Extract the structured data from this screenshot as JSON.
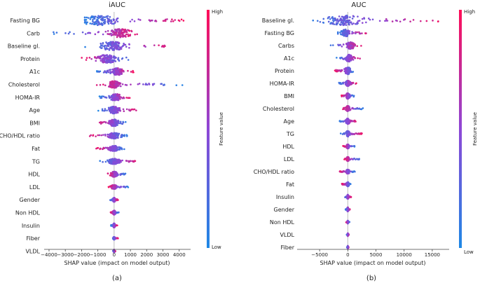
{
  "colors": {
    "low": "#1e88e5",
    "high": "#ff0d57"
  },
  "colorbar": {
    "high": "High",
    "low": "Low",
    "label": "Feature value"
  },
  "chart_data": [
    {
      "type": "scatter",
      "subtype": "shap-beeswarm",
      "title": "iAUC",
      "panel_label": "(a)",
      "xlabel": "SHAP value (impact on model output)",
      "xlim": [
        -4300,
        4700
      ],
      "xticks": [
        -4000,
        -3000,
        -2000,
        -1000,
        0,
        1000,
        2000,
        3000,
        4000
      ],
      "xtick_labels": [
        "−4000",
        "−3000",
        "−2000",
        "−1000",
        "0",
        "1000",
        "2000",
        "3000",
        "4000"
      ],
      "features": [
        {
          "name": "Fasting BG",
          "min": -1800,
          "max": 4300,
          "center": -900,
          "spread": 1400,
          "slope": 1,
          "width": 7
        },
        {
          "name": "Carb",
          "min": -3800,
          "max": 1500,
          "center": 400,
          "spread": 900,
          "slope": 1,
          "width": 6
        },
        {
          "name": "Baseline gl.",
          "min": -1900,
          "max": 3600,
          "center": -100,
          "spread": 1100,
          "slope": 1,
          "width": 6
        },
        {
          "name": "Protein",
          "min": -2000,
          "max": 1000,
          "center": -400,
          "spread": 800,
          "slope": -1,
          "width": 6
        },
        {
          "name": "A1c",
          "min": -1100,
          "max": 1200,
          "center": 200,
          "spread": 500,
          "slope": 1,
          "width": 5
        },
        {
          "name": "Cholesterol",
          "min": -1300,
          "max": 4200,
          "center": 0,
          "spread": 450,
          "slope": -1,
          "width": 5
        },
        {
          "name": "HOMA-IR",
          "min": -900,
          "max": 1000,
          "center": 100,
          "spread": 450,
          "slope": 1,
          "width": 5
        },
        {
          "name": "Age",
          "min": -1000,
          "max": 1500,
          "center": 0,
          "spread": 500,
          "slope": 1,
          "width": 5
        },
        {
          "name": "BMI",
          "min": -1100,
          "max": 800,
          "center": 0,
          "spread": 400,
          "slope": -1,
          "width": 5
        },
        {
          "name": "CHO/HDL ratio",
          "min": -1500,
          "max": 800,
          "center": 0,
          "spread": 500,
          "slope": -1,
          "width": 4
        },
        {
          "name": "Fat",
          "min": -1100,
          "max": 700,
          "center": 0,
          "spread": 400,
          "slope": -1,
          "width": 4
        },
        {
          "name": "TG",
          "min": -900,
          "max": 1500,
          "center": 0,
          "spread": 450,
          "slope": 1,
          "width": 4
        },
        {
          "name": "HDL",
          "min": -400,
          "max": 700,
          "center": 0,
          "spread": 250,
          "slope": -1,
          "width": 4
        },
        {
          "name": "LDL",
          "min": -400,
          "max": 900,
          "center": 0,
          "spread": 250,
          "slope": -1,
          "width": 3
        },
        {
          "name": "Gender",
          "min": -250,
          "max": 250,
          "center": 0,
          "spread": 100,
          "slope": 1,
          "width": 3
        },
        {
          "name": "Non HDL",
          "min": -250,
          "max": 300,
          "center": 0,
          "spread": 100,
          "slope": -1,
          "width": 3
        },
        {
          "name": "Insulin",
          "min": -200,
          "max": 200,
          "center": 0,
          "spread": 80,
          "slope": 1,
          "width": 3
        },
        {
          "name": "Fiber",
          "min": -120,
          "max": 250,
          "center": 0,
          "spread": 60,
          "slope": 1,
          "width": 2
        },
        {
          "name": "VLDL",
          "min": -80,
          "max": 80,
          "center": 0,
          "spread": 30,
          "slope": 1,
          "width": 2
        }
      ]
    },
    {
      "type": "scatter",
      "subtype": "shap-beeswarm",
      "title": "AUC",
      "panel_label": "(b)",
      "xlabel": "SHAP value (impact on model output)",
      "xlim": [
        -9000,
        18000
      ],
      "xticks": [
        -5000,
        0,
        5000,
        10000,
        15000
      ],
      "xtick_labels": [
        "−5000",
        "0",
        "5000",
        "10000",
        "15000"
      ],
      "features": [
        {
          "name": "Baseline gl.",
          "min": -7000,
          "max": 16500,
          "center": -500,
          "spread": 4500,
          "slope": 1,
          "width": 7
        },
        {
          "name": "Fasting BG",
          "min": -1800,
          "max": 3500,
          "center": -400,
          "spread": 900,
          "slope": 1,
          "width": 5
        },
        {
          "name": "Carbs",
          "min": -3200,
          "max": 2500,
          "center": 500,
          "spread": 900,
          "slope": 1,
          "width": 5
        },
        {
          "name": "A1c",
          "min": -2000,
          "max": 2500,
          "center": 200,
          "spread": 800,
          "slope": 1,
          "width": 5
        },
        {
          "name": "Protein",
          "min": -2300,
          "max": 1200,
          "center": 0,
          "spread": 700,
          "slope": -1,
          "width": 5
        },
        {
          "name": "HOMA-IR",
          "min": -1600,
          "max": 1600,
          "center": 0,
          "spread": 500,
          "slope": 1,
          "width": 4
        },
        {
          "name": "BMI",
          "min": -1200,
          "max": 1300,
          "center": 0,
          "spread": 450,
          "slope": -1,
          "width": 4
        },
        {
          "name": "Cholesterol",
          "min": -1000,
          "max": 2700,
          "center": 0,
          "spread": 450,
          "slope": -1,
          "width": 4
        },
        {
          "name": "Age",
          "min": -1500,
          "max": 1500,
          "center": 0,
          "spread": 450,
          "slope": 1,
          "width": 4
        },
        {
          "name": "TG",
          "min": -1300,
          "max": 2600,
          "center": 0,
          "spread": 450,
          "slope": 1,
          "width": 4
        },
        {
          "name": "HDL",
          "min": -900,
          "max": 1200,
          "center": 0,
          "spread": 300,
          "slope": -1,
          "width": 3
        },
        {
          "name": "LDL",
          "min": -700,
          "max": 2200,
          "center": 0,
          "spread": 300,
          "slope": -1,
          "width": 3
        },
        {
          "name": "CHO/HDL ratio",
          "min": -1500,
          "max": 1300,
          "center": 0,
          "spread": 400,
          "slope": -1,
          "width": 3
        },
        {
          "name": "Fat",
          "min": -1100,
          "max": 600,
          "center": 0,
          "spread": 300,
          "slope": -1,
          "width": 3
        },
        {
          "name": "Insulin",
          "min": -600,
          "max": 600,
          "center": 0,
          "spread": 200,
          "slope": 1,
          "width": 3
        },
        {
          "name": "Gender",
          "min": -400,
          "max": 400,
          "center": 0,
          "spread": 150,
          "slope": 1,
          "width": 3
        },
        {
          "name": "Non HDL",
          "min": -300,
          "max": 300,
          "center": 0,
          "spread": 100,
          "slope": -1,
          "width": 2
        },
        {
          "name": "VLDL",
          "min": -200,
          "max": 200,
          "center": 0,
          "spread": 60,
          "slope": 1,
          "width": 2
        },
        {
          "name": "Fiber",
          "min": -150,
          "max": 150,
          "center": 0,
          "spread": 40,
          "slope": 1,
          "width": 2
        }
      ]
    }
  ]
}
